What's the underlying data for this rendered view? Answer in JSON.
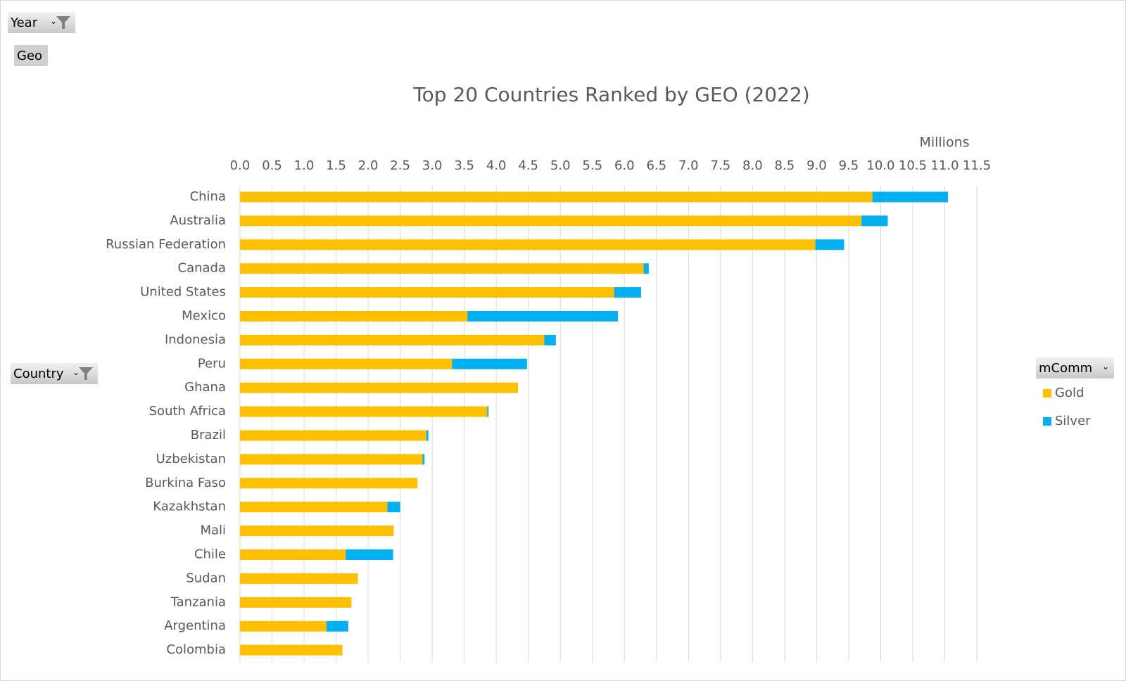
{
  "chart_data": {
    "type": "stacked-bar-horizontal",
    "title": "Top 20 Countries Ranked by GEO (2022)",
    "axis_unit": "Millions",
    "filters": {
      "year": "Year",
      "values": "Geo",
      "rows": "Country",
      "legend": "mComm"
    },
    "categories": [
      "China",
      "Australia",
      "Russian Federation",
      "Canada",
      "United States",
      "Mexico",
      "Indonesia",
      "Peru",
      "Ghana",
      "South Africa",
      "Brazil",
      "Uzbekistan",
      "Burkina Faso",
      "Kazakhstan",
      "Mali",
      "Chile",
      "Sudan",
      "Tanzania",
      "Argentina",
      "Colombia"
    ],
    "series": [
      {
        "name": "Gold",
        "color": "#ffc000",
        "values": [
          9.87,
          9.7,
          8.98,
          6.3,
          5.84,
          3.55,
          4.75,
          3.31,
          4.34,
          3.86,
          2.91,
          2.85,
          2.77,
          2.3,
          2.4,
          1.65,
          1.84,
          1.74,
          1.35,
          1.6
        ]
      },
      {
        "name": "Silver",
        "color": "#00b0f0",
        "values": [
          1.18,
          0.41,
          0.45,
          0.08,
          0.42,
          2.35,
          0.18,
          1.17,
          null,
          0.02,
          0.03,
          0.03,
          null,
          0.2,
          null,
          0.74,
          null,
          null,
          0.34,
          null
        ]
      }
    ],
    "xlim": [
      0,
      11.5
    ],
    "xticks": [
      {
        "value": 0,
        "label": "0.0"
      },
      {
        "value": 0.5,
        "label": "0.5"
      },
      {
        "value": 1,
        "label": "1.0"
      },
      {
        "value": 1.5,
        "label": "1.5"
      },
      {
        "value": 2,
        "label": "2.0"
      },
      {
        "value": 2.5,
        "label": "2.5"
      },
      {
        "value": 3,
        "label": "3.0"
      },
      {
        "value": 3.5,
        "label": "3.5"
      },
      {
        "value": 4,
        "label": "4.0"
      },
      {
        "value": 4.5,
        "label": "4.5"
      },
      {
        "value": 5,
        "label": "5.0"
      },
      {
        "value": 5.5,
        "label": "5.5"
      },
      {
        "value": 6,
        "label": "6.0"
      },
      {
        "value": 6.5,
        "label": "6.5"
      },
      {
        "value": 7,
        "label": "7.0"
      },
      {
        "value": 7.5,
        "label": "7.5"
      },
      {
        "value": 8,
        "label": "8.0"
      },
      {
        "value": 8.5,
        "label": "8.5"
      },
      {
        "value": 9,
        "label": "9.0"
      },
      {
        "value": 9.5,
        "label": "9.5"
      },
      {
        "value": 10,
        "label": "10.0"
      },
      {
        "value": 10.5,
        "label": "10.5"
      },
      {
        "value": 11,
        "label": "11.0"
      },
      {
        "value": 11.5,
        "label": "11.5"
      }
    ],
    "grid": true,
    "legend_position": "right"
  }
}
